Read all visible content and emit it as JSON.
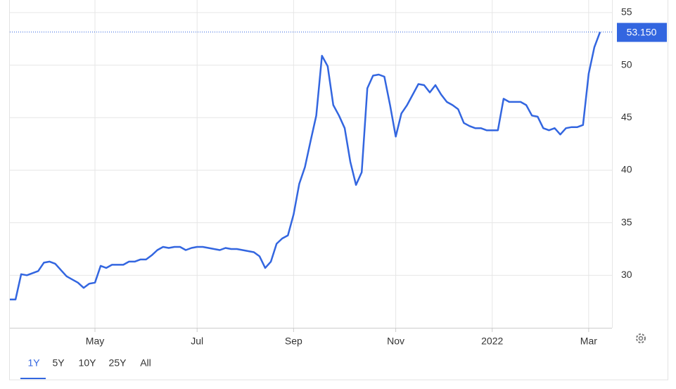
{
  "chart_data": {
    "type": "line",
    "categories": [
      null,
      null,
      null,
      null,
      null,
      null,
      null,
      null,
      null,
      null,
      null,
      null,
      null,
      null,
      null,
      "May",
      null,
      null,
      null,
      null,
      null,
      null,
      null,
      null,
      null,
      null,
      null,
      null,
      null,
      null,
      null,
      null,
      null,
      "Jul",
      null,
      null,
      null,
      null,
      null,
      null,
      null,
      null,
      null,
      null,
      null,
      null,
      null,
      null,
      null,
      null,
      "Sep",
      null,
      null,
      null,
      null,
      null,
      null,
      null,
      null,
      null,
      null,
      null,
      null,
      null,
      null,
      null,
      null,
      null,
      "Nov",
      null,
      null,
      null,
      null,
      null,
      null,
      null,
      null,
      null,
      null,
      null,
      null,
      null,
      null,
      null,
      null,
      "2022",
      null,
      null,
      null,
      null,
      null,
      null,
      null,
      null,
      null,
      null,
      null,
      null,
      null,
      null,
      null,
      null,
      "Mar",
      null,
      null
    ],
    "values": [
      27.7,
      27.7,
      30.1,
      30.0,
      30.2,
      30.4,
      31.2,
      31.3,
      31.1,
      30.5,
      29.9,
      29.6,
      29.3,
      28.8,
      29.2,
      29.3,
      30.9,
      30.7,
      31.0,
      31.0,
      31.0,
      31.3,
      31.3,
      31.5,
      31.5,
      31.9,
      32.4,
      32.7,
      32.6,
      32.7,
      32.7,
      32.4,
      32.6,
      32.7,
      32.7,
      32.6,
      32.5,
      32.4,
      32.6,
      32.5,
      32.5,
      32.4,
      32.3,
      32.2,
      31.8,
      30.7,
      31.3,
      33.0,
      33.5,
      33.8,
      35.8,
      38.7,
      40.3,
      42.8,
      45.2,
      50.9,
      49.9,
      46.2,
      45.2,
      44.0,
      40.8,
      38.6,
      39.8,
      47.8,
      49.0,
      49.1,
      48.9,
      46.2,
      43.2,
      45.4,
      46.2,
      47.2,
      48.2,
      48.1,
      47.4,
      48.1,
      47.2,
      46.5,
      46.2,
      45.8,
      44.5,
      44.2,
      44.0,
      44.0,
      43.8,
      43.8,
      43.8,
      46.8,
      46.5,
      46.5,
      46.5,
      46.2,
      45.2,
      45.1,
      44.0,
      43.8,
      44.0,
      43.4,
      44.0,
      44.1,
      44.1,
      44.3,
      49.2,
      51.7,
      53.15
    ],
    "value_labels": [
      null,
      null,
      null,
      null,
      null,
      null,
      null,
      null,
      null,
      null,
      null,
      null,
      null,
      null,
      null,
      null,
      null,
      null,
      null,
      null,
      null,
      null,
      null,
      null,
      null,
      null,
      null,
      null,
      null,
      null,
      null,
      null,
      null,
      null,
      null,
      null,
      null,
      null,
      null,
      null,
      null,
      null,
      null,
      null,
      null,
      null,
      null,
      null,
      null,
      null,
      null,
      null,
      null,
      null,
      null,
      null,
      null,
      null,
      null,
      null,
      null,
      null,
      null,
      null,
      null,
      null,
      null,
      null,
      null,
      null,
      null,
      null,
      null,
      null,
      null,
      null,
      null,
      null,
      null,
      null,
      null,
      null,
      null,
      null,
      null,
      null,
      null,
      null,
      null,
      null,
      null,
      null,
      null,
      null,
      null,
      null,
      null,
      null,
      null,
      null,
      null,
      null,
      null,
      null,
      "53.150"
    ],
    "color": "#3366e0",
    "ylim": [
      25,
      56.2
    ],
    "yticks": [
      30,
      35,
      40,
      45,
      50,
      55
    ],
    "grid": true
  },
  "range_buttons": [
    "1Y",
    "5Y",
    "10Y",
    "25Y",
    "All"
  ],
  "selected_range": 0
}
